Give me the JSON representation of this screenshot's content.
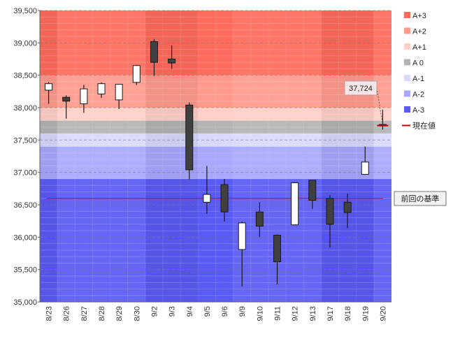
{
  "chart_data": {
    "type": "candlestick",
    "title": "",
    "xlabel": "",
    "ylabel": "",
    "ylim": [
      35000,
      39500
    ],
    "yticks": [
      35000,
      35500,
      36000,
      36500,
      37000,
      37500,
      38000,
      38500,
      39000,
      39500
    ],
    "ytick_labels": [
      "35,000",
      "35,500",
      "36,000",
      "36,500",
      "37,000",
      "37,500",
      "38,000",
      "38,500",
      "39,000",
      "39,500"
    ],
    "grid": true,
    "legend_position": "right",
    "categories": [
      "8/23",
      "8/26",
      "8/27",
      "8/28",
      "8/29",
      "8/30",
      "9/2",
      "9/3",
      "9/4",
      "9/5",
      "9/6",
      "9/9",
      "9/10",
      "9/11",
      "9/12",
      "9/13",
      "9/17",
      "9/18",
      "9/19",
      "9/20"
    ],
    "candles": [
      {
        "open": 38270,
        "high": 38400,
        "low": 38060,
        "close": 38370
      },
      {
        "open": 38160,
        "high": 38190,
        "low": 37830,
        "close": 38100
      },
      {
        "open": 38060,
        "high": 38350,
        "low": 37920,
        "close": 38290
      },
      {
        "open": 38210,
        "high": 38390,
        "low": 38150,
        "close": 38370
      },
      {
        "open": 38120,
        "high": 38360,
        "low": 37980,
        "close": 38360
      },
      {
        "open": 38390,
        "high": 38660,
        "low": 38350,
        "close": 38650
      },
      {
        "open": 39020,
        "high": 39060,
        "low": 38490,
        "close": 38700
      },
      {
        "open": 38750,
        "high": 38960,
        "low": 38600,
        "close": 38690
      },
      {
        "open": 38040,
        "high": 38080,
        "low": 36890,
        "close": 37040
      },
      {
        "open": 36540,
        "high": 37100,
        "low": 36360,
        "close": 36660
      },
      {
        "open": 36810,
        "high": 36900,
        "low": 36240,
        "close": 36390
      },
      {
        "open": 35810,
        "high": 36240,
        "low": 35240,
        "close": 36220
      },
      {
        "open": 36390,
        "high": 36540,
        "low": 36000,
        "close": 36170
      },
      {
        "open": 36030,
        "high": 36040,
        "low": 35270,
        "close": 35620
      },
      {
        "open": 36190,
        "high": 36850,
        "low": 36190,
        "close": 36840
      },
      {
        "open": 36880,
        "high": 36880,
        "low": 36440,
        "close": 36570
      },
      {
        "open": 36600,
        "high": 36650,
        "low": 35840,
        "close": 36200
      },
      {
        "open": 36540,
        "high": 36670,
        "low": 36140,
        "close": 36380
      },
      {
        "open": 36970,
        "high": 37400,
        "low": 36970,
        "close": 37160
      },
      {
        "open": 37740,
        "high": 37970,
        "low": 37660,
        "close": 37720
      }
    ],
    "zones": [
      {
        "name": "A+3",
        "from": 38500,
        "to": 39500,
        "color": "#ff6b5c"
      },
      {
        "name": "A+2",
        "from": 38000,
        "to": 38500,
        "color": "#ff9a8c"
      },
      {
        "name": "A+1",
        "from": 37800,
        "to": 38000,
        "color": "#ffcfc8"
      },
      {
        "name": "A 0",
        "from": 37600,
        "to": 37800,
        "color": "#b3b3b3"
      },
      {
        "name": "A-1",
        "from": 37400,
        "to": 37600,
        "color": "#d9d9ff"
      },
      {
        "name": "A-2",
        "from": 36900,
        "to": 37400,
        "color": "#a8a8ff"
      },
      {
        "name": "A-3",
        "from": 35000,
        "to": 36900,
        "color": "#5a5af5"
      }
    ],
    "current_value": 37724,
    "current_value_label": "37,724",
    "current_value_legend": "現在値",
    "current_value_color": "#c00000",
    "previous_baseline": 36600,
    "previous_baseline_label": "前回の基準",
    "previous_baseline_color": "#d40000",
    "up_color": "#ffffff",
    "down_color": "#404040"
  }
}
